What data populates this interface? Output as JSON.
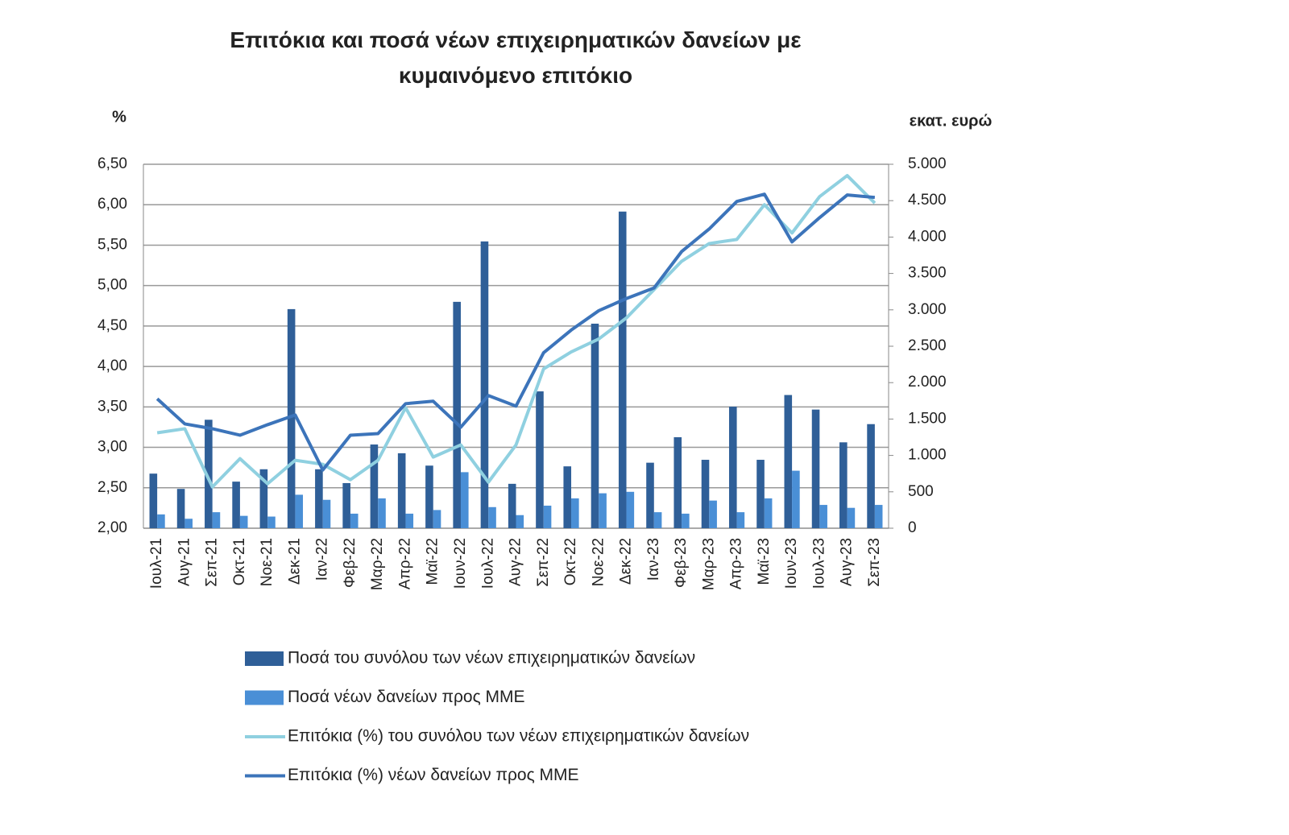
{
  "chart_data": {
    "type": "combo",
    "title": "Επιτόκια και ποσά νέων επιχειρηματικών δανείων με κυμαινόμενο επιτόκιο",
    "y_label": "%",
    "y2_label": "εκατ. ευρώ",
    "categories": [
      "Ιουλ-21",
      "Αυγ-21",
      "Σεπ-21",
      "Οκτ-21",
      "Νοε-21",
      "Δεκ-21",
      "Ιαν-22",
      "Φεβ-22",
      "Μαρ-22",
      "Απρ-22",
      "Μαϊ-22",
      "Ιουν-22",
      "Ιουλ-22",
      "Αυγ-22",
      "Σεπ-22",
      "Οκτ-22",
      "Νοε-22",
      "Δεκ-22",
      "Ιαν-23",
      "Φεβ-23",
      "Μαρ-23",
      "Απρ-23",
      "Μαϊ-23",
      "Ιουν-23",
      "Ιουλ-23",
      "Αυγ-23",
      "Σεπ-23"
    ],
    "series": [
      {
        "name": "Ποσά του συνόλου των νέων επιχειρηματικών δανείων",
        "type": "bar",
        "axis": "y2",
        "color": "#2f5f98",
        "values": [
          750,
          540,
          1490,
          640,
          810,
          3010,
          810,
          620,
          1150,
          1030,
          860,
          3110,
          3940,
          610,
          1880,
          850,
          2810,
          4350,
          900,
          1250,
          940,
          1670,
          940,
          1830,
          1630,
          1180,
          1430
        ]
      },
      {
        "name": "Ποσά νέων δανείων προς ΜΜΕ",
        "type": "bar",
        "axis": "y2",
        "color": "#4a8fd6",
        "values": [
          190,
          130,
          220,
          170,
          160,
          460,
          390,
          200,
          410,
          200,
          250,
          770,
          290,
          180,
          310,
          410,
          480,
          500,
          220,
          200,
          380,
          220,
          410,
          790,
          320,
          280,
          320
        ]
      },
      {
        "name": "Επιτόκια (%) του συνόλου των νέων επιχειρηματικών δανείων",
        "type": "line",
        "axis": "y",
        "color": "#8fd0e0",
        "values": [
          3.18,
          3.23,
          2.51,
          2.86,
          2.55,
          2.84,
          2.79,
          2.6,
          2.84,
          3.49,
          2.88,
          3.03,
          2.57,
          3.03,
          3.97,
          4.18,
          4.34,
          4.6,
          4.95,
          5.3,
          5.52,
          5.57,
          6.0,
          5.65,
          6.1,
          6.36,
          6.02
        ]
      },
      {
        "name": "Επιτόκια (%) νέων δανείων προς ΜΜΕ",
        "type": "line",
        "axis": "y",
        "color": "#3c74ba",
        "values": [
          3.6,
          3.29,
          3.23,
          3.15,
          3.28,
          3.4,
          2.72,
          3.15,
          3.17,
          3.54,
          3.57,
          3.25,
          3.64,
          3.51,
          4.17,
          4.45,
          4.69,
          4.84,
          4.97,
          5.42,
          5.7,
          6.04,
          6.13,
          5.54,
          5.84,
          6.12,
          6.09
        ]
      }
    ],
    "ylim": [
      2,
      6.5
    ],
    "yticks": [
      {
        "value": 2,
        "label": "2,00"
      },
      {
        "value": 2.5,
        "label": "2,50"
      },
      {
        "value": 3,
        "label": "3,00"
      },
      {
        "value": 3.5,
        "label": "3,50"
      },
      {
        "value": 4,
        "label": "4,00"
      },
      {
        "value": 4.5,
        "label": "4,50"
      },
      {
        "value": 5,
        "label": "5,00"
      },
      {
        "value": 5.5,
        "label": "5,50"
      },
      {
        "value": 6,
        "label": "6,00"
      },
      {
        "value": 6.5,
        "label": "6,50"
      }
    ],
    "y2lim": [
      0,
      5000
    ],
    "y2ticks": [
      0,
      500,
      {
        "value": 1000,
        "label": "1.000"
      },
      {
        "value": 1500,
        "label": "1.500"
      },
      {
        "value": 2000,
        "label": "2.000"
      },
      {
        "value": 2500,
        "label": "2.500"
      },
      {
        "value": 3000,
        "label": "3.000"
      },
      {
        "value": 3500,
        "label": "3.500"
      },
      {
        "value": 4000,
        "label": "4.000"
      },
      {
        "value": 4500,
        "label": "4.500"
      },
      {
        "value": 5000,
        "label": "5.000"
      }
    ],
    "grid": true
  }
}
